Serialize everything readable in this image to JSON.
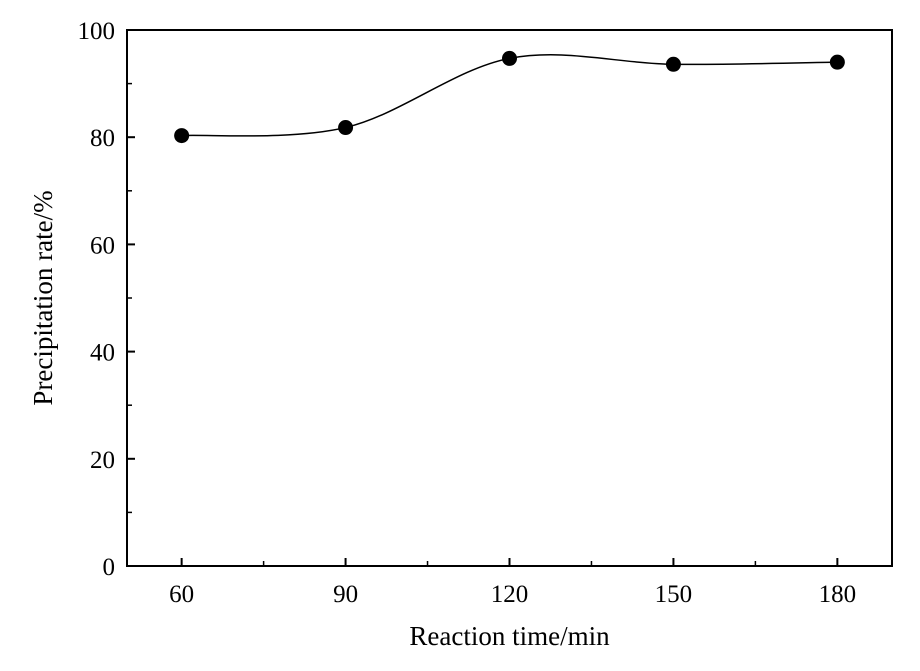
{
  "chart_data": {
    "type": "line",
    "title": "",
    "xlabel": "Reaction time/min",
    "ylabel": "Precipitation rate/%",
    "x": [
      60,
      90,
      120,
      150,
      180
    ],
    "series": [
      {
        "values": [
          80.3,
          81.8,
          94.7,
          93.6,
          94.0
        ]
      }
    ],
    "xlim": [
      50,
      190
    ],
    "ylim": [
      0,
      100
    ],
    "xticks": [
      "60",
      "90",
      "120",
      "150",
      "180"
    ],
    "xticks_values": [
      60,
      90,
      120,
      150,
      180
    ],
    "yticks": [
      "0",
      "20",
      "40",
      "60",
      "80",
      "100"
    ],
    "yticks_values": [
      0,
      20,
      40,
      60,
      80,
      100
    ],
    "grid": false,
    "line_style": "smooth",
    "marker": "filled-circle",
    "color": "#000000"
  }
}
